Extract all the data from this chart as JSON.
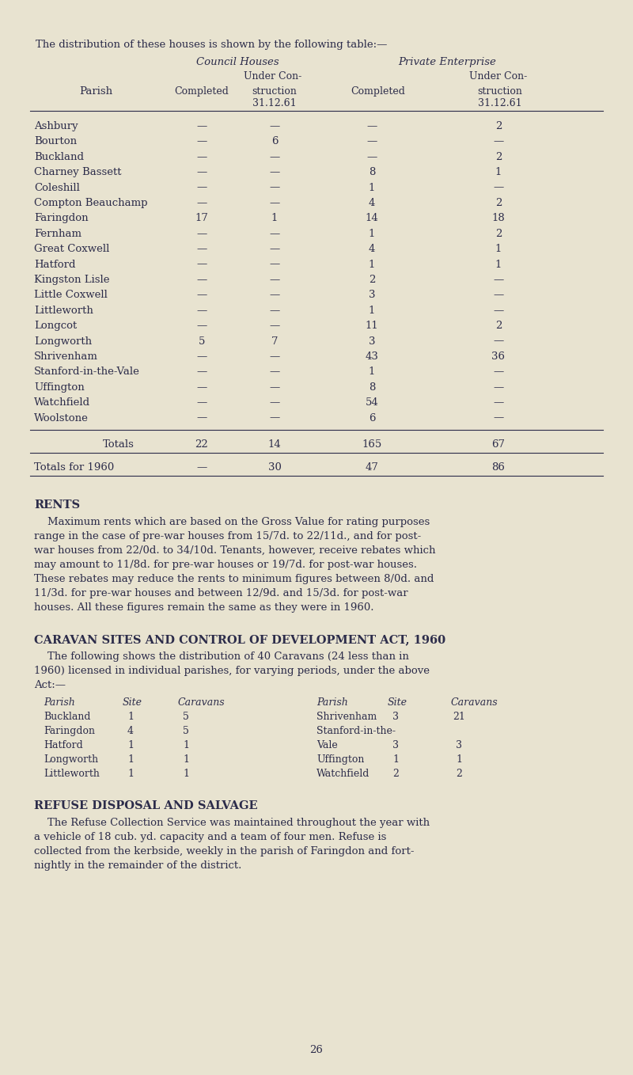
{
  "bg_color": "#e8e3d0",
  "text_color": "#2c2c4a",
  "page_width": 8.0,
  "page_height": 13.58,
  "title_line": "The distribution of these houses is shown by the following table:—",
  "table_rows": [
    [
      "Ashbury",
      "—",
      "—",
      "—",
      "2"
    ],
    [
      "Bourton",
      "—",
      "6",
      "—",
      "—"
    ],
    [
      "Buckland",
      "—",
      "—",
      "—",
      "2"
    ],
    [
      "Charney Bassett",
      "—",
      "—",
      "8",
      "1"
    ],
    [
      "Coleshill",
      "—",
      "—",
      "1",
      "—"
    ],
    [
      "Compton Beauchamp",
      "—",
      "—",
      "4",
      "2"
    ],
    [
      "Faringdon",
      "17",
      "1",
      "14",
      "18"
    ],
    [
      "Fernham",
      "—",
      "—",
      "1",
      "2"
    ],
    [
      "Great Coxwell",
      "—",
      "—",
      "4",
      "1"
    ],
    [
      "Hatford",
      "—",
      "—",
      "1",
      "1"
    ],
    [
      "Kingston Lisle",
      "—",
      "—",
      "2",
      "—"
    ],
    [
      "Little Coxwell",
      "—",
      "—",
      "3",
      "—"
    ],
    [
      "Littleworth",
      "—",
      "—",
      "1",
      "—"
    ],
    [
      "Longcot",
      "—",
      "—",
      "11",
      "2"
    ],
    [
      "Longworth",
      "5",
      "7",
      "3",
      "—"
    ],
    [
      "Shrivenham",
      "—",
      "—",
      "43",
      "36"
    ],
    [
      "Stanford-in-the-Vale",
      "—",
      "—",
      "1",
      "—"
    ],
    [
      "Uffington",
      "—",
      "—",
      "8",
      "—"
    ],
    [
      "Watchfield",
      "—",
      "—",
      "54",
      "—"
    ],
    [
      "Woolstone",
      "—",
      "—",
      "6",
      "—"
    ]
  ],
  "totals_row": [
    "Totals",
    "22",
    "14",
    "165",
    "67"
  ],
  "totals_1960_row": [
    "Totals for 1960",
    "—",
    "30",
    "47",
    "86"
  ],
  "rents_heading": "RENTS",
  "rents_lines": [
    "    Maximum rents which are based on the Gross Value for rating purposes",
    "range in the case of pre-war houses from 15/7d. to 22/11d., and for post-",
    "war houses from 22/0d. to 34/10d. Tenants, however, receive rebates which",
    "may amount to 11/8d. for pre-war houses or 19/7d. for post-war houses.",
    "These rebates may reduce the rents to minimum figures between 8/0d. and",
    "11/3d. for pre-war houses and between 12/9d. and 15/3d. for post-war",
    "houses. All these figures remain the same as they were in 1960."
  ],
  "caravan_heading": "CARAVAN SITES AND CONTROL OF DEVELOPMENT ACT, 1960",
  "caravan_intro_lines": [
    "    The following shows the distribution of 40 Caravans (24 less than in",
    "1960) licensed in individual parishes, for varying periods, under the above",
    "Act:—"
  ],
  "caravan_col_headers": [
    "Parish",
    "Site",
    "Caravans",
    "Parish",
    "Site",
    "Caravans"
  ],
  "caravan_rows_left": [
    [
      "Buckland",
      "1",
      "5"
    ],
    [
      "Faringdon",
      "4",
      "5"
    ],
    [
      "Hatford",
      "1",
      "1"
    ],
    [
      "Longworth",
      "1",
      "1"
    ],
    [
      "Littleworth",
      "1",
      "1"
    ]
  ],
  "caravan_rows_right": [
    [
      "Shrivenham",
      "3",
      "21"
    ],
    [
      "Stanford-in-the-",
      "",
      ""
    ],
    [
      "Vale",
      "3",
      "3"
    ],
    [
      "Uffington",
      "1",
      "1"
    ],
    [
      "Watchfield",
      "2",
      "2"
    ]
  ],
  "refuse_heading": "REFUSE DISPOSAL AND SALVAGE",
  "refuse_lines": [
    "    The Refuse Collection Service was maintained throughout the year with",
    "a vehicle of 18 cub. yd. capacity and a team of four men. Refuse is",
    "collected from the kerbside, weekly in the parish of Faringdon and fort-",
    "nightly in the remainder of the district."
  ],
  "page_number": "26",
  "fs_body": 9.5,
  "fs_small": 9.0,
  "fs_heading": 10.5,
  "fs_title": 9.5
}
